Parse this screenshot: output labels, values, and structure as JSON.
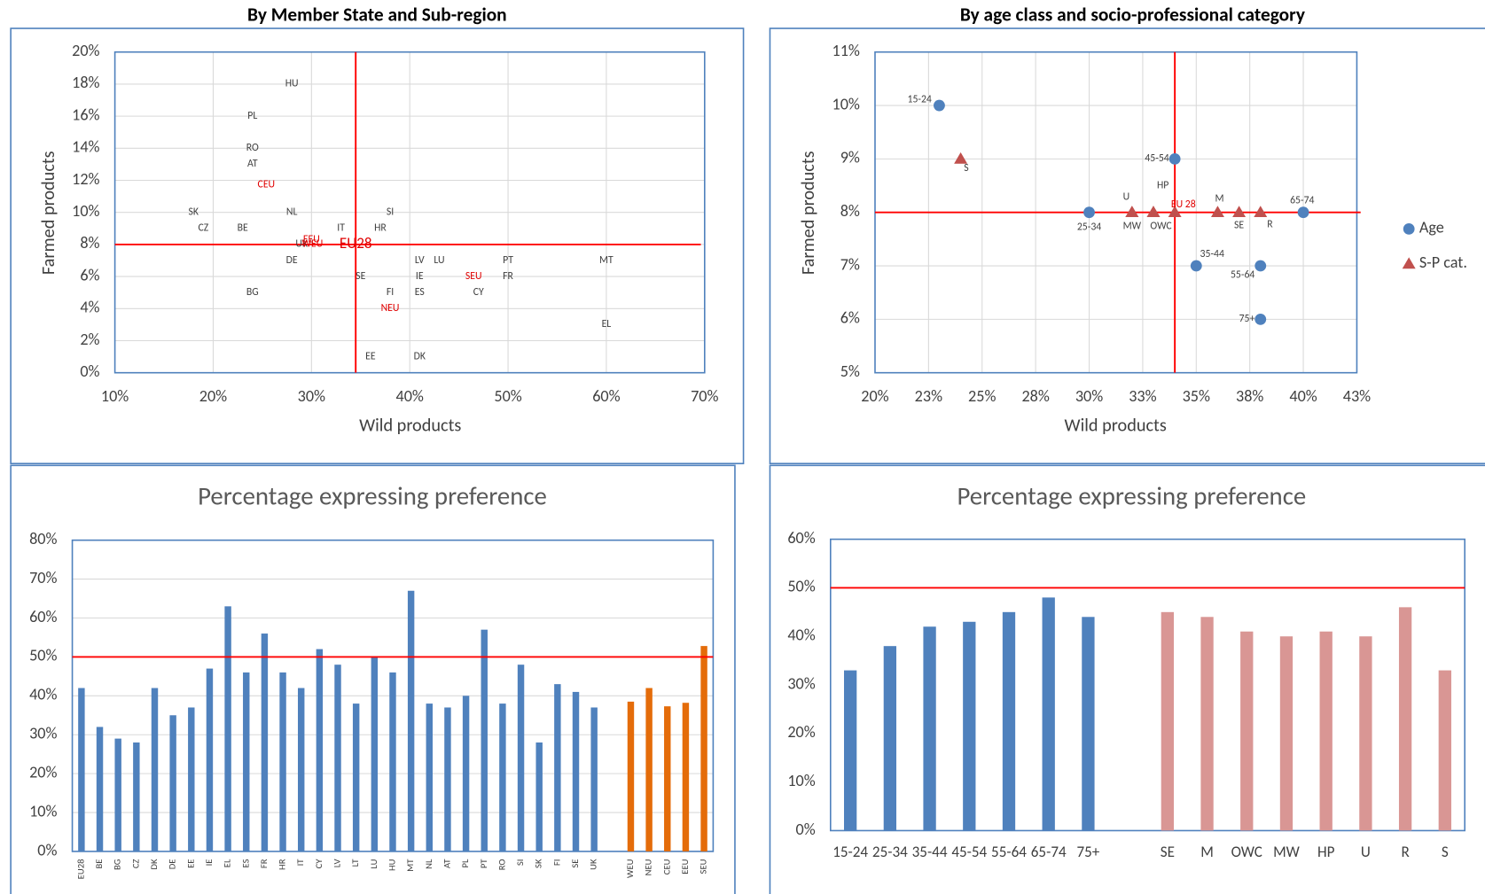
{
  "chart_data": [
    {
      "type": "scatter",
      "title": "By Member State and Sub-region",
      "xlabel": "Wild products",
      "ylabel": "Farmed products",
      "xlim": [
        10,
        70
      ],
      "xticks": [
        {
          "value": 10,
          "label": "10%"
        },
        {
          "value": 20,
          "label": "20%"
        },
        {
          "value": 30,
          "label": "30%"
        },
        {
          "value": 40,
          "label": "40%"
        },
        {
          "value": 50,
          "label": "50%"
        },
        {
          "value": 60,
          "label": "60%"
        },
        {
          "value": 70,
          "label": "70%"
        }
      ],
      "ylim": [
        0,
        20
      ],
      "yticks": [
        {
          "value": 0,
          "label": "0%"
        },
        {
          "value": 2,
          "label": "2%"
        },
        {
          "value": 4,
          "label": "4%"
        },
        {
          "value": 6,
          "label": "6%"
        },
        {
          "value": 8,
          "label": "8%"
        },
        {
          "value": 10,
          "label": "10%"
        },
        {
          "value": 12,
          "label": "12%"
        },
        {
          "value": 14,
          "label": "14%"
        },
        {
          "value": 16,
          "label": "16%"
        },
        {
          "value": 18,
          "label": "18%"
        },
        {
          "value": 20,
          "label": "20%"
        }
      ],
      "grid": true,
      "reference_x": 34.5,
      "reference_y": 8,
      "reference_color": "#ff0000",
      "series": [
        {
          "color": "#404040",
          "marker": "label",
          "point_labels": [
            "HU",
            "PL",
            "RO",
            "AT",
            "SK",
            "CZ",
            "BE",
            "NL",
            "IT",
            "HR",
            "SI",
            "UK",
            "DE",
            "LV",
            "LU",
            "PT",
            "MT",
            "SE",
            "IE",
            "FR",
            "BG",
            "FI",
            "ES",
            "CY",
            "EL",
            "EE",
            "DK"
          ],
          "x": [
            28,
            24,
            24,
            24,
            18,
            19,
            23,
            28,
            33,
            37,
            38,
            29,
            28,
            41,
            43,
            50,
            60,
            35,
            41,
            50,
            24,
            38,
            41,
            47,
            60,
            36,
            41
          ],
          "values": [
            18,
            16,
            14,
            13,
            10,
            9,
            9,
            10,
            9,
            9,
            10,
            8,
            7,
            7,
            7,
            7,
            7,
            6,
            6,
            6,
            5,
            5,
            5,
            5,
            3,
            1,
            1
          ]
        },
        {
          "color": "#e00000",
          "marker": "label",
          "point_labels": [
            "CEU",
            "EEU",
            "WEU",
            "EU28",
            "SEU",
            "NEU"
          ],
          "x": [
            25.4,
            30,
            30.1,
            34.5,
            46.5,
            38
          ],
          "values": [
            11.7,
            8.3,
            8,
            8,
            6,
            4
          ]
        }
      ]
    },
    {
      "type": "scatter",
      "title": "By age class and socio-professional category",
      "xlabel": "Wild products",
      "ylabel": "Farmed products",
      "xlim": [
        20,
        42.5
      ],
      "xticks": [
        {
          "value": 20,
          "label": "20%"
        },
        {
          "value": 22.5,
          "label": "23%"
        },
        {
          "value": 25,
          "label": "25%"
        },
        {
          "value": 27.5,
          "label": "28%"
        },
        {
          "value": 30,
          "label": "30%"
        },
        {
          "value": 32.5,
          "label": "33%"
        },
        {
          "value": 35,
          "label": "35%"
        },
        {
          "value": 37.5,
          "label": "38%"
        },
        {
          "value": 40,
          "label": "40%"
        },
        {
          "value": 42.5,
          "label": "43%"
        }
      ],
      "ylim": [
        5,
        11
      ],
      "yticks": [
        {
          "value": 5,
          "label": "5%"
        },
        {
          "value": 6,
          "label": "6%"
        },
        {
          "value": 7,
          "label": "7%"
        },
        {
          "value": 8,
          "label": "8%"
        },
        {
          "value": 9,
          "label": "9%"
        },
        {
          "value": 10,
          "label": "10%"
        },
        {
          "value": 11,
          "label": "11%"
        }
      ],
      "grid": true,
      "reference_x": 34,
      "reference_y": 8,
      "reference_color": "#ff0000",
      "legend": "right",
      "series": [
        {
          "name": "Age",
          "color": "#4f81bd",
          "marker": "circle",
          "point_labels": [
            "15-24",
            "25-34",
            "35-44",
            "45-54",
            "55-64",
            "65-74",
            "75+"
          ],
          "x": [
            23,
            30,
            35,
            34,
            38,
            40,
            38
          ],
          "values": [
            10,
            8,
            7,
            9,
            7,
            8,
            6
          ]
        },
        {
          "name": "S-P cat.",
          "color": "#c0504d",
          "marker": "triangle",
          "point_labels": [
            "S",
            "MW",
            "OWC",
            "U",
            "HP",
            "EU 28",
            "M",
            "SE",
            "R"
          ],
          "label_colors": [
            "#404040",
            "#404040",
            "#404040",
            "#404040",
            "#404040",
            "#e00000",
            "#404040",
            "#404040",
            "#404040"
          ],
          "x": [
            24,
            32,
            33,
            32,
            33,
            34,
            36,
            37,
            38
          ],
          "values": [
            9,
            8,
            8,
            8,
            8,
            8,
            8,
            8,
            8
          ]
        }
      ]
    },
    {
      "type": "bar",
      "title": "Percentage expressing preference",
      "categories": [
        "EU28",
        "BE",
        "BG",
        "CZ",
        "DK",
        "DE",
        "EE",
        "IE",
        "EL",
        "ES",
        "FR",
        "HR",
        "IT",
        "CY",
        "LV",
        "LT",
        "LU",
        "HU",
        "MT",
        "NL",
        "AT",
        "PL",
        "PT",
        "RO",
        "SI",
        "SK",
        "FI",
        "SE",
        "UK",
        null,
        "WEU",
        "NEU",
        "CEU",
        "EEU",
        "SEU"
      ],
      "values": [
        42,
        32,
        29,
        28,
        42,
        35,
        37,
        47,
        63,
        46,
        56,
        46,
        42,
        52,
        48,
        38,
        50,
        46,
        67,
        38,
        37,
        40,
        57,
        38,
        48,
        28,
        43,
        41,
        37,
        null,
        38.5,
        42,
        37.3,
        38.2,
        52.8
      ],
      "colors": [
        "#4f81bd",
        "#4f81bd",
        "#4f81bd",
        "#4f81bd",
        "#4f81bd",
        "#4f81bd",
        "#4f81bd",
        "#4f81bd",
        "#4f81bd",
        "#4f81bd",
        "#4f81bd",
        "#4f81bd",
        "#4f81bd",
        "#4f81bd",
        "#4f81bd",
        "#4f81bd",
        "#4f81bd",
        "#4f81bd",
        "#4f81bd",
        "#4f81bd",
        "#4f81bd",
        "#4f81bd",
        "#4f81bd",
        "#4f81bd",
        "#4f81bd",
        "#4f81bd",
        "#4f81bd",
        "#4f81bd",
        "#4f81bd",
        null,
        "#e46c0a",
        "#e46c0a",
        "#e46c0a",
        "#e46c0a",
        "#e46c0a"
      ],
      "ylim": [
        0,
        80
      ],
      "yticks": [
        {
          "value": 0,
          "label": "0%"
        },
        {
          "value": 10,
          "label": "10%"
        },
        {
          "value": 20,
          "label": "20%"
        },
        {
          "value": 30,
          "label": "30%"
        },
        {
          "value": 40,
          "label": "40%"
        },
        {
          "value": 50,
          "label": "50%"
        },
        {
          "value": 60,
          "label": "60%"
        },
        {
          "value": 70,
          "label": "70%"
        },
        {
          "value": 80,
          "label": "80%"
        }
      ],
      "grid": true,
      "reference_y": 50,
      "reference_color": "#ff0000",
      "rotate_labels": true
    },
    {
      "type": "bar",
      "title": "Percentage expressing preference",
      "categories": [
        "15-24",
        "25-34",
        "35-44",
        "45-54",
        "55-64",
        "65-74",
        "75+",
        null,
        "SE",
        "M",
        "OWC",
        "MW",
        "HP",
        "U",
        "R",
        "S"
      ],
      "values": [
        33,
        38,
        42,
        43,
        45,
        48,
        44,
        null,
        45,
        44,
        41,
        40,
        41,
        40,
        46,
        33
      ],
      "colors": [
        "#4f81bd",
        "#4f81bd",
        "#4f81bd",
        "#4f81bd",
        "#4f81bd",
        "#4f81bd",
        "#4f81bd",
        null,
        "#d99694",
        "#d99694",
        "#d99694",
        "#d99694",
        "#d99694",
        "#d99694",
        "#d99694",
        "#d99694"
      ],
      "ylim": [
        0,
        60
      ],
      "yticks": [
        {
          "value": 0,
          "label": "0%"
        },
        {
          "value": 10,
          "label": "10%"
        },
        {
          "value": 20,
          "label": "20%"
        },
        {
          "value": 30,
          "label": "30%"
        },
        {
          "value": 40,
          "label": "40%"
        },
        {
          "value": 50,
          "label": "50%"
        },
        {
          "value": 60,
          "label": "60%"
        }
      ],
      "grid": false,
      "reference_y": 50,
      "reference_color": "#ff0000",
      "rotate_labels": false
    }
  ]
}
